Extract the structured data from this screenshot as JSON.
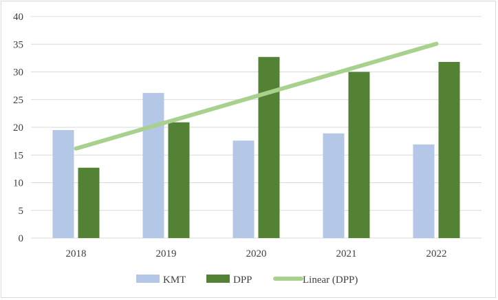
{
  "chart_data": {
    "type": "bar",
    "title": "",
    "xlabel": "",
    "ylabel": "",
    "categories": [
      "2018",
      "2019",
      "2020",
      "2021",
      "2022"
    ],
    "series": [
      {
        "name": "KMT",
        "values": [
          19.5,
          26.2,
          17.6,
          18.9,
          16.9
        ],
        "color": "#b4c7e7"
      },
      {
        "name": "DPP",
        "values": [
          12.7,
          20.9,
          32.7,
          30.0,
          31.8
        ],
        "color": "#548235"
      }
    ],
    "trendline": {
      "name": "Linear (DPP)",
      "series": "DPP",
      "type": "linear",
      "color": "#a9d18e"
    },
    "ylim": [
      0,
      40
    ],
    "yticks": [
      0,
      5,
      10,
      15,
      20,
      25,
      30,
      35,
      40
    ],
    "grid": true,
    "legend": "bottom"
  }
}
